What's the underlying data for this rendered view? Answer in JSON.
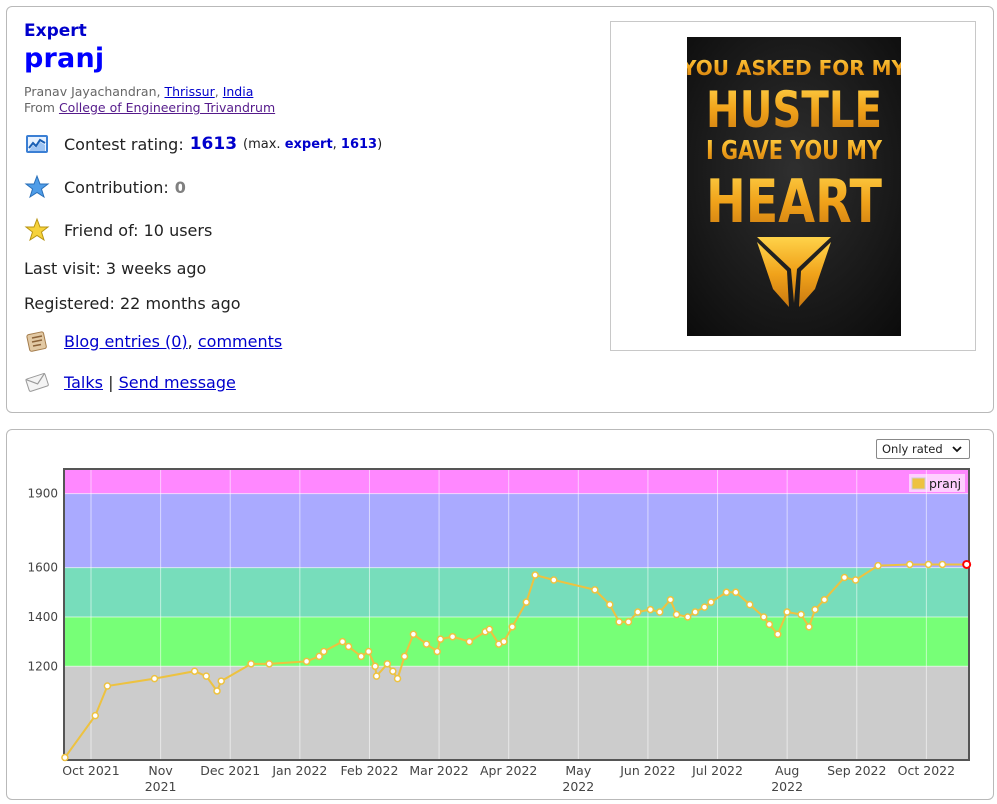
{
  "profile": {
    "rank": "Expert",
    "handle": "pranj",
    "name_prefix": "Pranav Jayachandran, ",
    "city": "Thrissur",
    "sep": ", ",
    "country": "India",
    "from_prefix": "From ",
    "organization": "College of Engineering Trivandrum",
    "rating_label": "Contest rating:",
    "rating_value": "1613",
    "max_prefix": "(max. ",
    "max_rank": "expert",
    "max_sep": ", ",
    "max_value": "1613",
    "max_suffix": ")",
    "contribution_label": "Contribution:",
    "contribution_value": "0",
    "friend_text": "Friend of: 10 users",
    "last_visit": "Last visit: 3 weeks ago",
    "registered": "Registered: 22 months ago",
    "blog_link": "Blog entries (0)",
    "comma": ",",
    "comments_link": "comments",
    "talks_link": "Talks",
    "pipe": "|",
    "send_message_link": "Send message",
    "avatar_text": [
      "YOU ASKED FOR MY",
      "HUSTLE",
      "I GAVE YOU MY",
      "HEART"
    ]
  },
  "graph_controls": {
    "filter_selected": "Only rated"
  },
  "colors": {
    "rank_blue": "#0000cc",
    "handle_blue": "#0000ff",
    "band_grey": "#cccccc",
    "band_green": "#77ff77",
    "band_cyan": "#77ddbb",
    "band_blue": "#aaaaff",
    "band_violet": "#ff88ff",
    "series_line": "#edc240"
  },
  "chart_data": {
    "type": "line",
    "legend": "pranj",
    "legend_position": "top-right",
    "y_ticks": [
      1200,
      1400,
      1600,
      1900
    ],
    "ylim": [
      820,
      2000
    ],
    "bands": [
      {
        "from": 0,
        "to": 1200,
        "color": "#cccccc"
      },
      {
        "from": 1200,
        "to": 1400,
        "color": "#77ff77"
      },
      {
        "from": 1400,
        "to": 1600,
        "color": "#77ddbb"
      },
      {
        "from": 1600,
        "to": 1900,
        "color": "#aaaaff"
      },
      {
        "from": 1900,
        "to": 2100,
        "color": "#ff88ff"
      }
    ],
    "x_ticks": [
      "Oct 2021",
      "Nov\n2021",
      "Dec 2021",
      "Jan 2022",
      "Feb 2022",
      "Mar 2022",
      "Apr 2022",
      "May\n2022",
      "Jun 2022",
      "Jul 2022",
      "Aug\n2022",
      "Sep 2022",
      "Oct 2022"
    ],
    "x_tick_pos": [
      0.5,
      1.5,
      2.5,
      3.5,
      4.5,
      5.5,
      6.5,
      7.5,
      8.5,
      9.5,
      10.5,
      11.5,
      12.5
    ],
    "gridlines": [
      0.0,
      1.0,
      2.0,
      3.0,
      4.0,
      5.0,
      6.0,
      7.0,
      8.0,
      9.0,
      10.0,
      11.0,
      12.0
    ],
    "x": [
      0.02,
      0.67,
      0.93,
      1.94,
      2.8,
      3.05,
      3.28,
      3.37,
      4.01,
      4.4,
      5.2,
      5.47,
      5.57,
      5.97,
      6.1,
      6.37,
      6.53,
      6.67,
      6.7,
      6.93,
      7.05,
      7.15,
      7.3,
      7.49,
      7.77,
      8.0,
      8.07,
      8.33,
      8.69,
      9.03,
      9.12,
      9.32,
      9.43,
      9.61,
      9.91,
      10.1,
      10.5,
      11.38,
      11.7,
      11.9,
      12.1,
      12.3,
      12.57,
      12.77,
      13.0,
      13.13,
      13.37,
      13.53,
      13.73,
      13.87,
      14.2,
      14.4,
      14.7,
      15.0,
      15.12,
      15.3,
      15.5,
      15.8,
      15.97,
      16.1,
      16.3,
      16.73,
      16.97,
      17.45,
      18.13,
      18.53,
      18.83,
      19.35
    ],
    "y": [
      830,
      1000,
      1120,
      1150,
      1180,
      1160,
      1100,
      1140,
      1210,
      1210,
      1220,
      1240,
      1260,
      1300,
      1280,
      1240,
      1260,
      1200,
      1160,
      1210,
      1180,
      1150,
      1240,
      1330,
      1290,
      1260,
      1310,
      1320,
      1300,
      1340,
      1350,
      1290,
      1300,
      1360,
      1460,
      1570,
      1550,
      1510,
      1450,
      1380,
      1380,
      1420,
      1430,
      1420,
      1470,
      1410,
      1400,
      1420,
      1440,
      1460,
      1500,
      1500,
      1450,
      1400,
      1370,
      1330,
      1420,
      1410,
      1360,
      1430,
      1470,
      1560,
      1550,
      1608,
      1613,
      1613,
      1613,
      1613
    ]
  }
}
